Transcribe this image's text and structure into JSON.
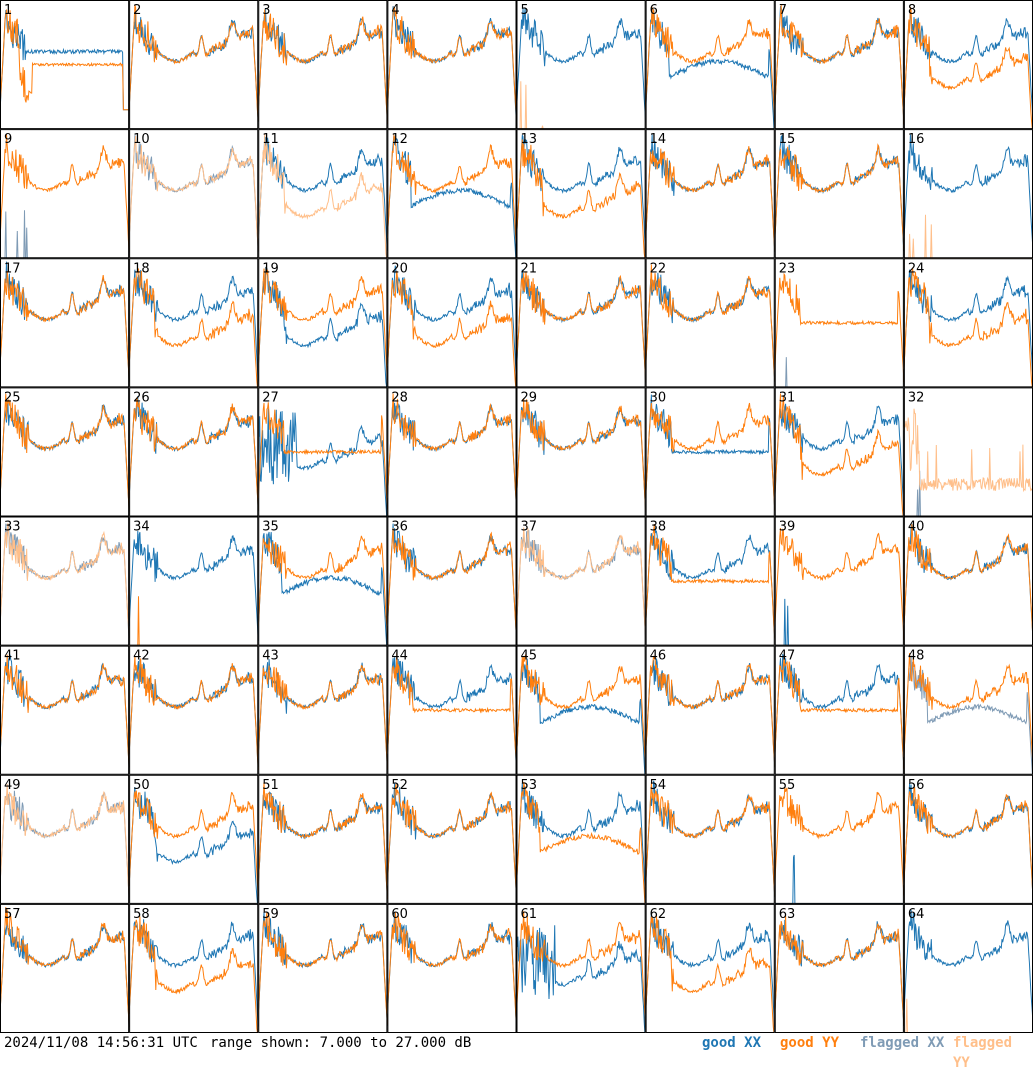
{
  "footer": {
    "timestamp": "2024/11/08 14:56:31 UTC",
    "range_text": "range shown: 7.000 to 27.000 dB",
    "legend": {
      "good_xx": "good XX",
      "good_yy": "good YY",
      "flagged_xx": "flagged XX",
      "flagged_yy": "flagged YY"
    }
  },
  "colors": {
    "good_xx": "#1f77b4",
    "good_yy": "#ff7f0e",
    "flagged_xx": "#7f9bb5",
    "flagged_yy": "#ffbf8a",
    "grid_line": "#000000"
  },
  "chart_data": {
    "type": "line",
    "grid": "8x8 small multiples",
    "ylim": [
      7,
      27
    ],
    "ylabel": "",
    "xlabel": "",
    "panels": [
      {
        "id": "1",
        "xx": "good",
        "yy": "good",
        "xx_shape": "hi_drop",
        "yy_shape": "dip"
      },
      {
        "id": "2",
        "xx": "good",
        "yy": "good",
        "xx_shape": "normal",
        "yy_shape": "normal"
      },
      {
        "id": "3",
        "xx": "good",
        "yy": "good",
        "xx_shape": "normal",
        "yy_shape": "normal"
      },
      {
        "id": "4",
        "xx": "good",
        "yy": "good",
        "xx_shape": "normal",
        "yy_shape": "normal"
      },
      {
        "id": "5",
        "xx": "good",
        "yy": "flagged",
        "xx_shape": "normal",
        "yy_shape": "zero"
      },
      {
        "id": "6",
        "xx": "good",
        "yy": "good",
        "xx_shape": "sag",
        "yy_shape": "normal"
      },
      {
        "id": "7",
        "xx": "good",
        "yy": "good",
        "xx_shape": "normal",
        "yy_shape": "normal"
      },
      {
        "id": "8",
        "xx": "good",
        "yy": "good",
        "xx_shape": "normal",
        "yy_shape": "low"
      },
      {
        "id": "9",
        "xx": "flagged",
        "yy": "good",
        "xx_shape": "zero",
        "yy_shape": "normal"
      },
      {
        "id": "10",
        "xx": "flagged",
        "yy": "flagged",
        "xx_shape": "normal",
        "yy_shape": "normal"
      },
      {
        "id": "11",
        "xx": "good",
        "yy": "flagged",
        "xx_shape": "normal",
        "yy_shape": "low"
      },
      {
        "id": "12",
        "xx": "good",
        "yy": "good",
        "xx_shape": "sag",
        "yy_shape": "normal"
      },
      {
        "id": "13",
        "xx": "good",
        "yy": "good",
        "xx_shape": "normal",
        "yy_shape": "low"
      },
      {
        "id": "14",
        "xx": "good",
        "yy": "good",
        "xx_shape": "normal",
        "yy_shape": "normal"
      },
      {
        "id": "15",
        "xx": "good",
        "yy": "good",
        "xx_shape": "normal",
        "yy_shape": "normal"
      },
      {
        "id": "16",
        "xx": "good",
        "yy": "flagged",
        "xx_shape": "normal",
        "yy_shape": "zero"
      },
      {
        "id": "17",
        "xx": "good",
        "yy": "good",
        "xx_shape": "normal",
        "yy_shape": "normal"
      },
      {
        "id": "18",
        "xx": "good",
        "yy": "good",
        "xx_shape": "normal",
        "yy_shape": "low"
      },
      {
        "id": "19",
        "xx": "good",
        "yy": "good",
        "xx_shape": "low",
        "yy_shape": "normal"
      },
      {
        "id": "20",
        "xx": "good",
        "yy": "good",
        "xx_shape": "normal",
        "yy_shape": "low"
      },
      {
        "id": "21",
        "xx": "good",
        "yy": "good",
        "xx_shape": "normal",
        "yy_shape": "normal"
      },
      {
        "id": "22",
        "xx": "good",
        "yy": "good",
        "xx_shape": "normal",
        "yy_shape": "normal"
      },
      {
        "id": "23",
        "xx": "flagged",
        "yy": "good",
        "xx_shape": "zero",
        "yy_shape": "flat"
      },
      {
        "id": "24",
        "xx": "good",
        "yy": "good",
        "xx_shape": "normal",
        "yy_shape": "low"
      },
      {
        "id": "25",
        "xx": "good",
        "yy": "good",
        "xx_shape": "normal",
        "yy_shape": "normal"
      },
      {
        "id": "26",
        "xx": "good",
        "yy": "good",
        "xx_shape": "normal",
        "yy_shape": "normal"
      },
      {
        "id": "27",
        "xx": "good",
        "yy": "good",
        "xx_shape": "noisy",
        "yy_shape": "flat"
      },
      {
        "id": "28",
        "xx": "good",
        "yy": "good",
        "xx_shape": "normal",
        "yy_shape": "normal"
      },
      {
        "id": "29",
        "xx": "good",
        "yy": "good",
        "xx_shape": "normal",
        "yy_shape": "normal"
      },
      {
        "id": "30",
        "xx": "good",
        "yy": "good",
        "xx_shape": "flat",
        "yy_shape": "normal"
      },
      {
        "id": "31",
        "xx": "good",
        "yy": "good",
        "xx_shape": "normal",
        "yy_shape": "low"
      },
      {
        "id": "32",
        "xx": "flagged",
        "yy": "flagged",
        "xx_shape": "zero",
        "yy_shape": "spiky"
      },
      {
        "id": "33",
        "xx": "flagged",
        "yy": "flagged",
        "xx_shape": "normal",
        "yy_shape": "normal"
      },
      {
        "id": "34",
        "xx": "good",
        "yy": "good",
        "xx_shape": "normal",
        "yy_shape": "zero"
      },
      {
        "id": "35",
        "xx": "good",
        "yy": "good",
        "xx_shape": "sag",
        "yy_shape": "normal"
      },
      {
        "id": "36",
        "xx": "good",
        "yy": "good",
        "xx_shape": "normal",
        "yy_shape": "normal"
      },
      {
        "id": "37",
        "xx": "flagged",
        "yy": "flagged",
        "xx_shape": "normal",
        "yy_shape": "normal"
      },
      {
        "id": "38",
        "xx": "good",
        "yy": "good",
        "xx_shape": "normal",
        "yy_shape": "flat"
      },
      {
        "id": "39",
        "xx": "good",
        "yy": "good",
        "xx_shape": "zero",
        "yy_shape": "normal"
      },
      {
        "id": "40",
        "xx": "good",
        "yy": "good",
        "xx_shape": "normal",
        "yy_shape": "normal"
      },
      {
        "id": "41",
        "xx": "good",
        "yy": "good",
        "xx_shape": "normal",
        "yy_shape": "normal"
      },
      {
        "id": "42",
        "xx": "good",
        "yy": "good",
        "xx_shape": "normal",
        "yy_shape": "normal"
      },
      {
        "id": "43",
        "xx": "good",
        "yy": "good",
        "xx_shape": "normal",
        "yy_shape": "normal"
      },
      {
        "id": "44",
        "xx": "good",
        "yy": "good",
        "xx_shape": "normal",
        "yy_shape": "flat"
      },
      {
        "id": "45",
        "xx": "good",
        "yy": "good",
        "xx_shape": "sag",
        "yy_shape": "normal"
      },
      {
        "id": "46",
        "xx": "good",
        "yy": "good",
        "xx_shape": "normal",
        "yy_shape": "normal"
      },
      {
        "id": "47",
        "xx": "good",
        "yy": "good",
        "xx_shape": "normal",
        "yy_shape": "flat"
      },
      {
        "id": "48",
        "xx": "flagged",
        "yy": "good",
        "xx_shape": "sag",
        "yy_shape": "normal"
      },
      {
        "id": "49",
        "xx": "flagged",
        "yy": "flagged",
        "xx_shape": "normal",
        "yy_shape": "normal"
      },
      {
        "id": "50",
        "xx": "good",
        "yy": "good",
        "xx_shape": "low",
        "yy_shape": "normal"
      },
      {
        "id": "51",
        "xx": "good",
        "yy": "good",
        "xx_shape": "normal",
        "yy_shape": "normal"
      },
      {
        "id": "52",
        "xx": "good",
        "yy": "good",
        "xx_shape": "normal",
        "yy_shape": "normal"
      },
      {
        "id": "53",
        "xx": "good",
        "yy": "good",
        "xx_shape": "normal",
        "yy_shape": "sag"
      },
      {
        "id": "54",
        "xx": "good",
        "yy": "good",
        "xx_shape": "normal",
        "yy_shape": "normal"
      },
      {
        "id": "55",
        "xx": "good",
        "yy": "good",
        "xx_shape": "zero",
        "yy_shape": "normal"
      },
      {
        "id": "56",
        "xx": "good",
        "yy": "good",
        "xx_shape": "normal",
        "yy_shape": "normal"
      },
      {
        "id": "57",
        "xx": "good",
        "yy": "good",
        "xx_shape": "normal",
        "yy_shape": "normal"
      },
      {
        "id": "58",
        "xx": "good",
        "yy": "good",
        "xx_shape": "normal",
        "yy_shape": "low"
      },
      {
        "id": "59",
        "xx": "good",
        "yy": "good",
        "xx_shape": "normal",
        "yy_shape": "normal"
      },
      {
        "id": "60",
        "xx": "good",
        "yy": "good",
        "xx_shape": "normal",
        "yy_shape": "normal"
      },
      {
        "id": "61",
        "xx": "good",
        "yy": "good",
        "xx_shape": "noisy",
        "yy_shape": "normal"
      },
      {
        "id": "62",
        "xx": "good",
        "yy": "good",
        "xx_shape": "normal",
        "yy_shape": "low"
      },
      {
        "id": "63",
        "xx": "good",
        "yy": "good",
        "xx_shape": "normal",
        "yy_shape": "normal"
      },
      {
        "id": "64",
        "xx": "good",
        "yy": "flagged",
        "xx_shape": "normal",
        "yy_shape": "zero"
      }
    ]
  }
}
